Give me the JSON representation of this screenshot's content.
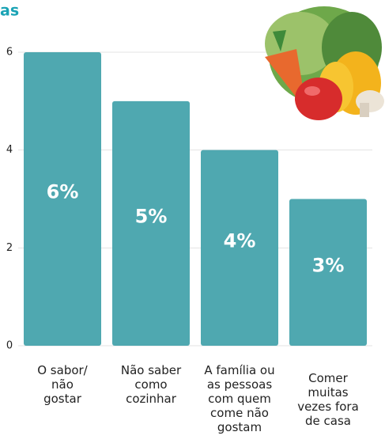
{
  "chart_data": {
    "type": "bar",
    "title": "as",
    "categories": [
      "O sabor/\nnão\ngostar",
      "Não saber\ncomo\ncozinhar",
      "A família ou\nas pessoas\ncom quem\ncome não\ngostam",
      "Comer\nmuitas\nvezes fora\nde casa"
    ],
    "values": [
      6,
      5,
      4,
      3
    ],
    "value_labels": [
      "6%",
      "5%",
      "4%",
      "3%"
    ],
    "color": "#4fa8b0",
    "ylim": [
      0,
      6
    ],
    "yticks": [
      0,
      2,
      4,
      6
    ],
    "grid": true
  }
}
